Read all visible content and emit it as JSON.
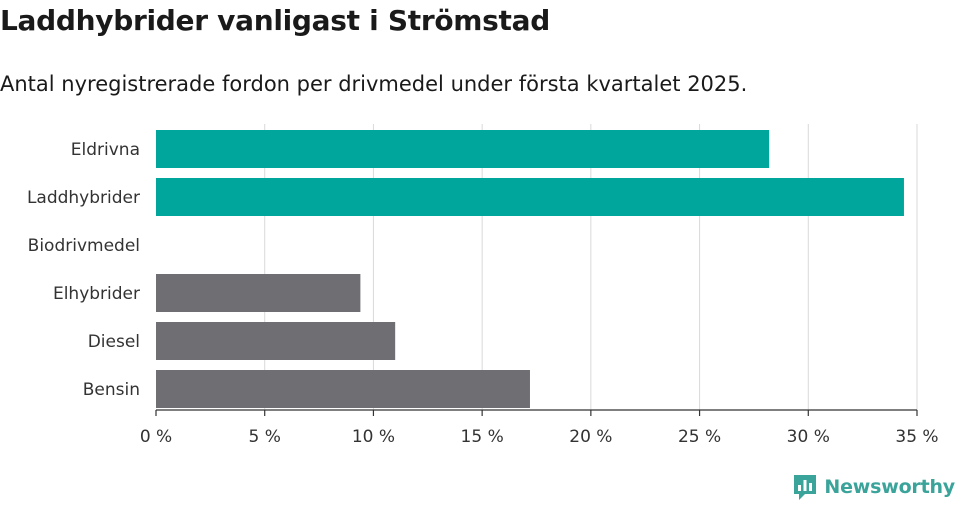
{
  "header": {
    "title": "Laddhybrider vanligast i Strömstad",
    "subtitle": "Antal nyregistrerade fordon per drivmedel under första kvartalet 2025."
  },
  "chart_data": {
    "type": "bar",
    "orientation": "horizontal",
    "categories": [
      "Eldrivna",
      "Laddhybrider",
      "Biodrivmedel",
      "Elhybrider",
      "Diesel",
      "Bensin"
    ],
    "values": [
      28.2,
      34.4,
      0,
      9.4,
      11.0,
      17.2
    ],
    "bar_colors": [
      "#00a59b",
      "#00a59b",
      "#00a59b",
      "#6e6e73",
      "#6e6e73",
      "#6e6e73"
    ],
    "xlim": [
      0,
      35
    ],
    "xticks": [
      0,
      5,
      10,
      15,
      20,
      25,
      30,
      35
    ],
    "xtick_labels": [
      "0 %",
      "5 %",
      "10 %",
      "15 %",
      "20 %",
      "25 %",
      "30 %",
      "35 %"
    ],
    "grid": true,
    "xlabel": "",
    "ylabel": ""
  },
  "brand": {
    "name": "Newsworthy",
    "icon": "newsworthy-logo-icon",
    "color": "#3aa39a"
  }
}
